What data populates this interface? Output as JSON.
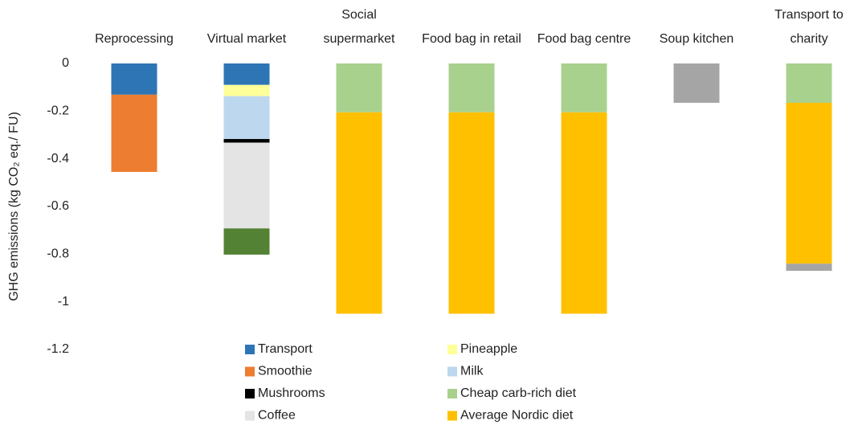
{
  "chart_data": {
    "type": "stacked_bar",
    "ylabel": "GHG emissions (kg CO₂ eq./ FU)",
    "categories": [
      "Reprocessing",
      "Virtual market",
      "Social supermarket",
      "Food bag in retail",
      "Food bag centre",
      "Soup kitchen",
      "Transport to charity"
    ],
    "series": [
      {
        "name": "Transport",
        "color": "#2e75b6",
        "values": [
          -0.131,
          -0.09,
          0,
          0,
          0,
          0,
          0
        ]
      },
      {
        "name": "Pineapple",
        "color": "#ffff99",
        "values": [
          0,
          -0.047,
          0,
          0,
          0,
          0,
          0
        ]
      },
      {
        "name": "Smoothie",
        "color": "#ed7d31",
        "values": [
          -0.324,
          0,
          0,
          0,
          0,
          0,
          0
        ]
      },
      {
        "name": "Milk",
        "color": "#bdd7ee",
        "values": [
          0,
          -0.18,
          0,
          0,
          0,
          0,
          0
        ]
      },
      {
        "name": "Mushrooms",
        "color": "#000000",
        "values": [
          0,
          -0.015,
          0,
          0,
          0,
          0,
          0
        ]
      },
      {
        "name": "Cheap carb-rich diet",
        "color": "#a9d18e",
        "values": [
          0,
          0,
          -0.205,
          -0.205,
          -0.205,
          0,
          -0.165
        ]
      },
      {
        "name": "Coffee",
        "color": "#e4e4e4",
        "values": [
          0,
          -0.36,
          0,
          0,
          0,
          0,
          0
        ]
      },
      {
        "name": "Average Nordic diet",
        "color": "#ffc000",
        "values": [
          0,
          0,
          -0.845,
          -0.845,
          -0.845,
          0,
          -0.675
        ]
      },
      {
        "name": null,
        "color": "#548235",
        "values": [
          0,
          -0.11,
          0,
          0,
          0,
          0,
          0
        ]
      },
      {
        "name": null,
        "color": "#a5a5a5",
        "values": [
          0,
          0,
          0,
          0,
          0,
          -0.165,
          -0.03
        ]
      }
    ],
    "ylim": [
      -1.2,
      0
    ],
    "yticks": [
      0,
      -0.2,
      -0.4,
      -0.6,
      -0.8,
      -1,
      -1.2
    ],
    "grid": false,
    "legend": "bottom"
  }
}
